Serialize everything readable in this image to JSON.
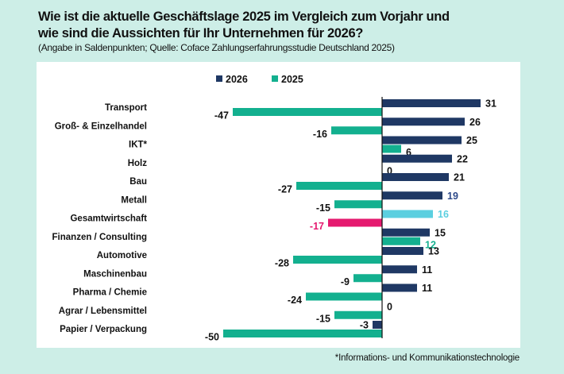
{
  "header": {
    "title_line1": "Wie ist die aktuelle Geschäftslage 2025 im Vergleich zum Vorjahr und",
    "title_line2": "wie sind die Aussichten für Ihr Unternehmen für 2026?",
    "subtitle": "(Angabe in Saldenpunkten; Quelle: Coface Zahlungserfahrungsstudie Deutschland 2025)"
  },
  "footnote": "*Informations- und Kommunikationstechnologie",
  "colors": {
    "background": "#cdeee7",
    "series_2026": "#1f3864",
    "series_2025": "#13b08f",
    "highlight_2026": "#5bcfe0",
    "highlight_2025": "#e5196f",
    "label_metall_2026": "#2e4a8a"
  },
  "chart_data": {
    "type": "bar",
    "orientation": "horizontal",
    "legend": [
      "2026",
      "2025"
    ],
    "legend_placement": "top",
    "grid": false,
    "categories": [
      "Transport",
      "Groß- & Einzelhandel",
      "IKT*",
      "Holz",
      "Bau",
      "Metall",
      "Gesamtwirtschaft",
      "Finanzen / Consulting",
      "Automotive",
      "Maschinenbau",
      "Pharma / Chemie",
      "Agrar / Lebensmittel",
      "Papier / Verpackung"
    ],
    "series": [
      {
        "name": "2026",
        "values": [
          31,
          26,
          25,
          22,
          21,
          19,
          16,
          15,
          13,
          11,
          11,
          0,
          -3
        ]
      },
      {
        "name": "2025",
        "values": [
          -47,
          -16,
          6,
          0,
          -27,
          -15,
          -17,
          12,
          -28,
          -9,
          -24,
          -15,
          -50
        ]
      }
    ],
    "highlight_category": "Gesamtwirtschaft",
    "xlim": [
      -50,
      31
    ]
  }
}
